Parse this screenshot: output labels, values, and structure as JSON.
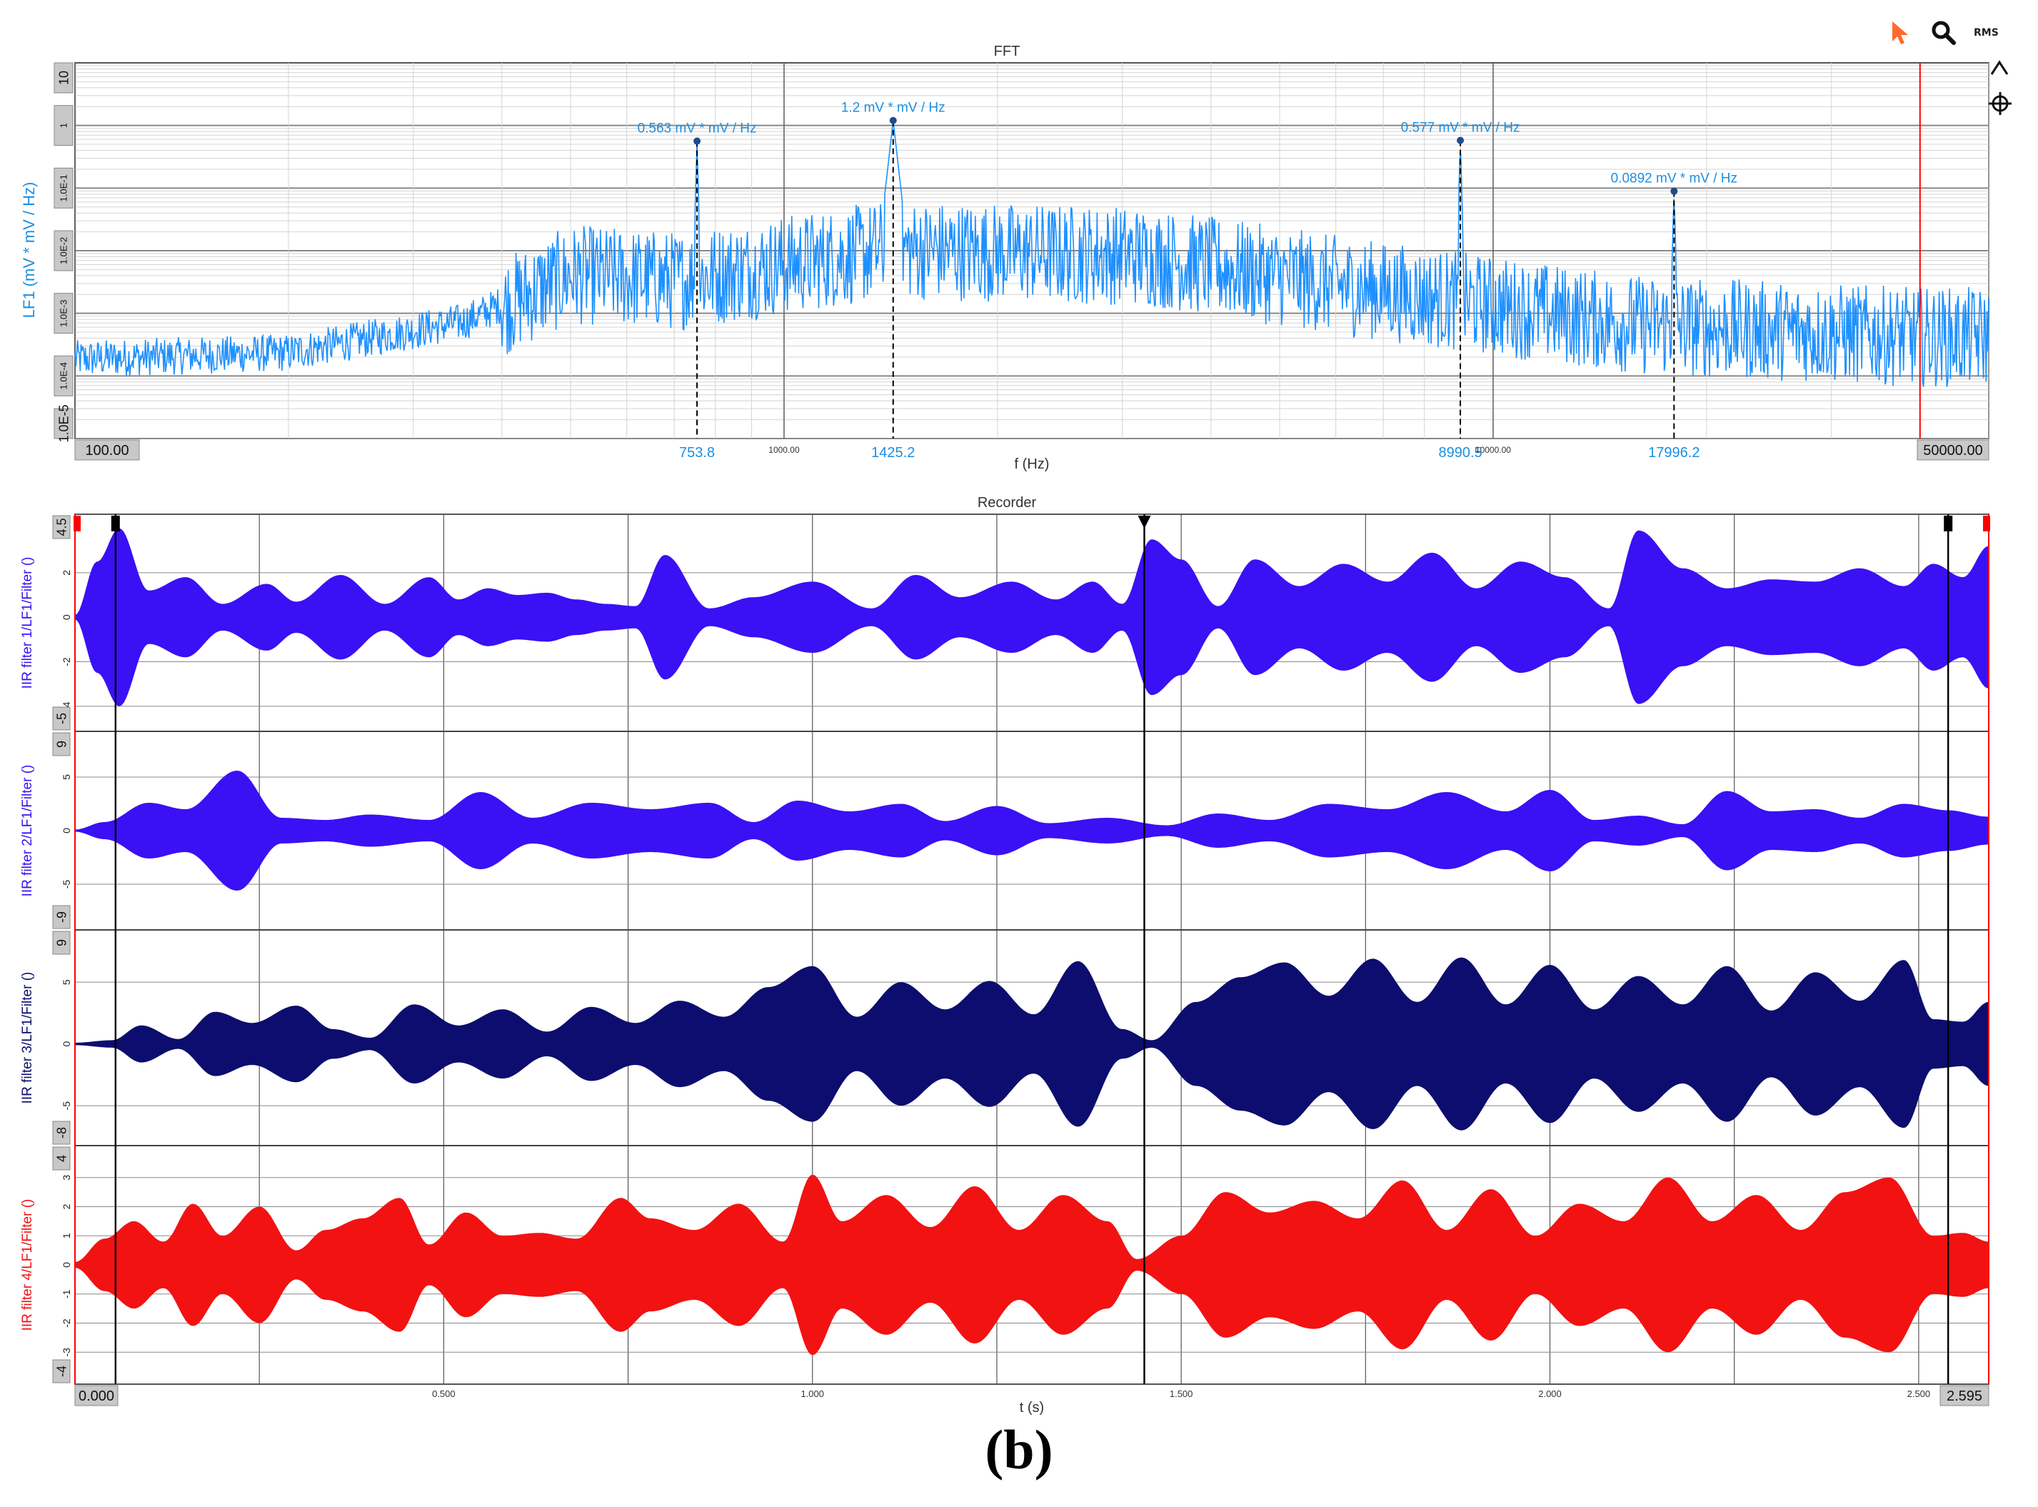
{
  "colors": {
    "fft_trace": "#1e90ff",
    "fft_label": "#1c8fe0",
    "ch1": "#3a10f5",
    "ch2": "#3a10f5",
    "ch3": "#0c0d6e",
    "ch4": "#f21212",
    "cursor": "#ff0000"
  },
  "toolbar": {
    "pointer_icon": "pointer-arrow-icon",
    "search_icon": "search-icon",
    "rms_label": "RMS",
    "collapse_icon": "chevron-up-icon",
    "crosshair_icon": "crosshair-icon"
  },
  "caption": "(b)",
  "chart_data": [
    {
      "type": "line",
      "title": "FFT",
      "xlabel": "f (Hz)",
      "ylabel": "LF1 (mV * mV / Hz)",
      "x_scale": "log",
      "y_scale": "log",
      "xlim": [
        100.0,
        50000.0
      ],
      "ylim": [
        1e-05,
        10
      ],
      "x_range_labels": [
        "100.00",
        "50000.00"
      ],
      "x_decade_labels": [
        "1000.00",
        "10000.00"
      ],
      "y_tick_labels": [
        "10",
        "1",
        "1.0E-1",
        "1.0E-2",
        "1.0E-3",
        "1.0E-4",
        "1.0E-5"
      ],
      "y_tick_values": [
        10,
        1,
        0.1,
        0.01,
        0.001,
        0.0001,
        1e-05
      ],
      "cursor_x": 40000,
      "grid": true,
      "peaks": [
        {
          "freq": 753.8,
          "freq_label": "753.8",
          "value": 0.563,
          "label": "0.563 mV * mV / Hz"
        },
        {
          "freq": 1425.2,
          "freq_label": "1425.2",
          "value": 1.2,
          "label": "1.2 mV * mV / Hz"
        },
        {
          "freq": 8990.5,
          "freq_label": "8990.5",
          "value": 0.577,
          "label": "0.577 mV * mV / Hz"
        },
        {
          "freq": 17996.2,
          "freq_label": "17996.2",
          "value": 0.0892,
          "label": "0.0892 mV * mV / Hz"
        }
      ]
    },
    {
      "type": "line",
      "title": "Recorder",
      "xlabel": "t (s)",
      "xlim": [
        0.0,
        2.595
      ],
      "x_range_labels": [
        "0.000",
        "2.595"
      ],
      "x_ticks": [
        0.5,
        1.0,
        1.5,
        2.0,
        2.5
      ],
      "x_tick_labels": [
        "0.500",
        "1.000",
        "1.500",
        "2.000",
        "2.500"
      ],
      "cursors": [
        0.055,
        1.45,
        2.54
      ],
      "grid": true,
      "series": [
        {
          "name": "IIR filter 1/LF1/Filter ()",
          "ylim": [
            -5,
            4.5
          ],
          "top_label": "4.5",
          "bottom_label": "-5",
          "ticks": [
            2,
            0,
            -2,
            -4
          ],
          "envelope_t": [
            0.0,
            0.03,
            0.06,
            0.1,
            0.15,
            0.2,
            0.26,
            0.3,
            0.36,
            0.42,
            0.48,
            0.52,
            0.56,
            0.6,
            0.64,
            0.68,
            0.72,
            0.76,
            0.8,
            0.86,
            0.92,
            1.0,
            1.08,
            1.14,
            1.2,
            1.27,
            1.33,
            1.38,
            1.42,
            1.46,
            1.5,
            1.55,
            1.6,
            1.66,
            1.72,
            1.78,
            1.84,
            1.9,
            1.96,
            2.02,
            2.08,
            2.12,
            2.18,
            2.24,
            2.3,
            2.36,
            2.42,
            2.48,
            2.52,
            2.56,
            2.595
          ],
          "envelope_v": [
            0.1,
            2.5,
            4.0,
            1.2,
            1.8,
            0.6,
            1.5,
            0.7,
            1.9,
            0.6,
            1.8,
            0.8,
            1.3,
            1.0,
            1.1,
            0.8,
            0.6,
            0.5,
            2.8,
            0.4,
            0.9,
            1.6,
            0.4,
            1.9,
            0.9,
            1.6,
            0.8,
            1.6,
            0.6,
            3.5,
            2.6,
            0.5,
            2.6,
            1.4,
            2.4,
            1.6,
            2.9,
            1.3,
            2.5,
            1.8,
            0.4,
            3.9,
            2.2,
            1.3,
            1.7,
            1.6,
            2.2,
            1.4,
            2.4,
            1.8,
            3.2
          ]
        },
        {
          "name": "IIR filter 2/LF1/Filter ()",
          "ylim": [
            -9,
            9
          ],
          "top_label": "9",
          "bottom_label": "-9",
          "ticks": [
            5,
            0,
            -5
          ],
          "envelope_t": [
            0.0,
            0.04,
            0.1,
            0.15,
            0.22,
            0.28,
            0.34,
            0.4,
            0.48,
            0.55,
            0.62,
            0.7,
            0.78,
            0.86,
            0.92,
            0.98,
            1.05,
            1.12,
            1.18,
            1.25,
            1.32,
            1.4,
            1.48,
            1.55,
            1.62,
            1.7,
            1.78,
            1.86,
            1.94,
            2.0,
            2.06,
            2.12,
            2.18,
            2.24,
            2.3,
            2.36,
            2.42,
            2.48,
            2.54,
            2.595
          ],
          "envelope_v": [
            0.1,
            0.8,
            2.6,
            2.0,
            5.6,
            1.2,
            1.0,
            1.5,
            1.0,
            3.6,
            1.2,
            2.6,
            2.0,
            2.6,
            0.8,
            2.8,
            1.8,
            2.5,
            0.9,
            2.3,
            0.7,
            1.2,
            0.5,
            1.6,
            1.0,
            2.5,
            2.0,
            3.6,
            1.8,
            3.8,
            1.0,
            1.4,
            0.6,
            3.7,
            1.8,
            2.0,
            1.2,
            2.5,
            1.9,
            1.3
          ]
        },
        {
          "name": "IIR filter 3/LF1/Filter ()",
          "ylim": [
            -8,
            9
          ],
          "top_label": "9",
          "bottom_label": "-8",
          "ticks": [
            5,
            0,
            -5
          ],
          "envelope_t": [
            0.0,
            0.05,
            0.09,
            0.14,
            0.19,
            0.24,
            0.3,
            0.35,
            0.4,
            0.46,
            0.52,
            0.58,
            0.64,
            0.7,
            0.76,
            0.82,
            0.88,
            0.94,
            1.0,
            1.06,
            1.12,
            1.18,
            1.24,
            1.3,
            1.36,
            1.42,
            1.46,
            1.52,
            1.58,
            1.64,
            1.7,
            1.76,
            1.82,
            1.88,
            1.94,
            2.0,
            2.06,
            2.12,
            2.18,
            2.24,
            2.3,
            2.36,
            2.42,
            2.48,
            2.52,
            2.56,
            2.595
          ],
          "envelope_v": [
            0.1,
            0.3,
            1.5,
            0.4,
            2.6,
            1.7,
            3.1,
            1.2,
            0.5,
            3.2,
            1.5,
            2.8,
            1.0,
            3.0,
            1.7,
            3.5,
            2.2,
            4.6,
            6.3,
            2.2,
            5.0,
            2.8,
            5.1,
            2.4,
            6.7,
            1.2,
            0.3,
            3.4,
            5.4,
            6.6,
            3.9,
            6.9,
            3.4,
            7.0,
            3.2,
            6.4,
            2.8,
            5.5,
            3.2,
            6.3,
            2.7,
            5.8,
            3.5,
            6.8,
            2.0,
            1.8,
            3.4
          ]
        },
        {
          "name": "IIR filter 4/LF1/Filter ()",
          "ylim": [
            -4,
            4
          ],
          "top_label": "4",
          "bottom_label": "-4",
          "ticks": [
            3,
            2,
            1,
            0,
            -1,
            -2,
            -3
          ],
          "envelope_t": [
            0.0,
            0.04,
            0.08,
            0.12,
            0.16,
            0.2,
            0.25,
            0.3,
            0.34,
            0.39,
            0.44,
            0.48,
            0.53,
            0.58,
            0.63,
            0.68,
            0.74,
            0.78,
            0.84,
            0.9,
            0.96,
            1.0,
            1.04,
            1.1,
            1.16,
            1.22,
            1.28,
            1.34,
            1.4,
            1.44,
            1.5,
            1.56,
            1.62,
            1.68,
            1.74,
            1.8,
            1.86,
            1.92,
            1.98,
            2.04,
            2.1,
            2.16,
            2.22,
            2.28,
            2.34,
            2.4,
            2.46,
            2.52,
            2.56,
            2.595
          ],
          "envelope_v": [
            0.1,
            0.9,
            1.5,
            0.8,
            2.1,
            1.0,
            2.0,
            0.5,
            1.2,
            1.6,
            2.3,
            0.7,
            1.8,
            1.0,
            1.1,
            0.9,
            2.3,
            1.6,
            1.2,
            2.1,
            0.8,
            3.1,
            1.5,
            2.4,
            1.3,
            2.7,
            1.2,
            2.4,
            1.5,
            0.2,
            1.0,
            2.5,
            1.8,
            2.2,
            1.6,
            2.9,
            1.2,
            2.6,
            1.0,
            2.1,
            1.5,
            3.0,
            1.5,
            2.4,
            1.2,
            2.5,
            3.0,
            1.0,
            1.1,
            0.8
          ]
        }
      ]
    }
  ]
}
